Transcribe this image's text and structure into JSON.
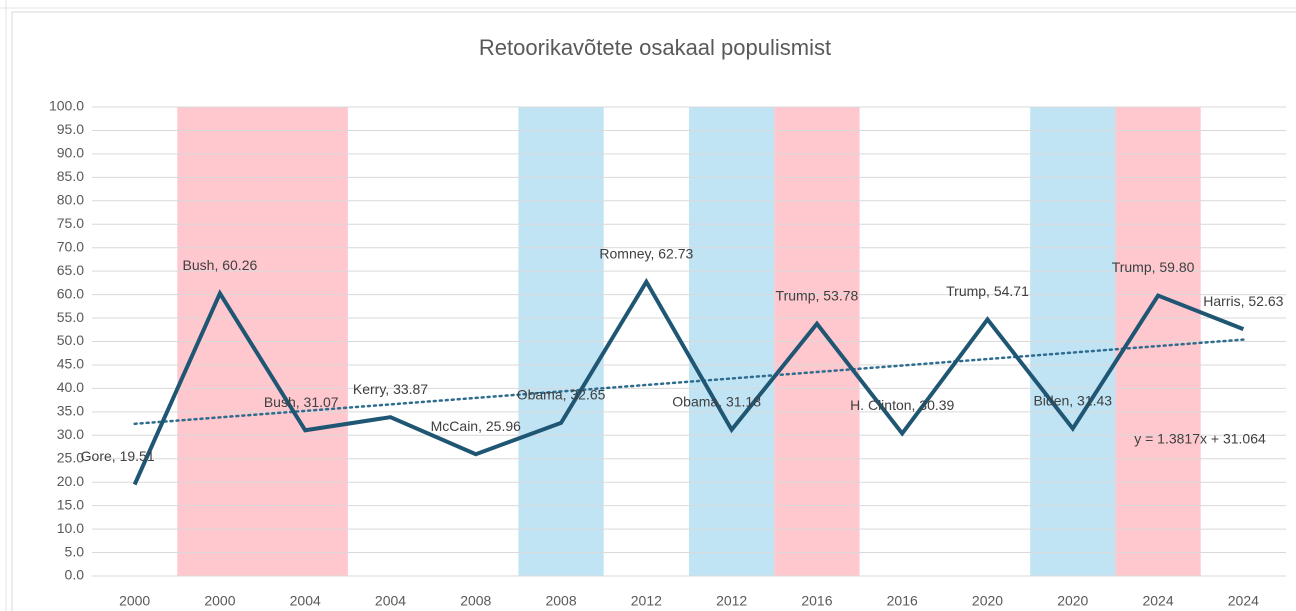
{
  "chart_data": {
    "type": "line",
    "title": "Retoorikavõtete osakaal populismist",
    "categories": [
      "2000",
      "2000",
      "2004",
      "2004",
      "2008",
      "2008",
      "2012",
      "2012",
      "2016",
      "2016",
      "2020",
      "2020",
      "2024",
      "2024"
    ],
    "series": [
      {
        "color": "#1f5673",
        "values": [
          19.51,
          60.26,
          31.07,
          33.87,
          25.96,
          32.65,
          62.73,
          31.18,
          53.78,
          30.39,
          54.71,
          31.43,
          59.8,
          52.63
        ],
        "value_labels": [
          "Gore, 19.51",
          "Bush, 60.26",
          "Bush, 31.07",
          "Kerry, 33.87",
          "McCain, 25.96",
          "Obama, 32.65",
          "Romney, 62.73",
          "Obama, 31.18",
          "Trump, 53.78",
          "H. Clinton, 30.39",
          "Trump, 54.71",
          "Biden, 31.43",
          "Trump, 59.80",
          "Harris, 52.63"
        ]
      }
    ],
    "background_bars": {
      "values": [
        null,
        100,
        100,
        null,
        null,
        100,
        null,
        100,
        100,
        null,
        null,
        100,
        100,
        null
      ],
      "colors": [
        null,
        "#ffc7ce",
        "#ffc7ce",
        null,
        null,
        "#c1e4f5",
        null,
        "#c1e4f5",
        "#ffc7ce",
        null,
        null,
        "#c1e4f5",
        "#ffc7ce",
        null
      ]
    },
    "trendline": {
      "slope": 1.3817,
      "intercept": 31.064,
      "label": "y = 1.3817x + 31.064",
      "color": "#2e6d8e"
    },
    "ylim": [
      0,
      100
    ],
    "yticks": [
      {
        "value": 0,
        "label": "0.0"
      },
      {
        "value": 5,
        "label": "5.0"
      },
      {
        "value": 10,
        "label": "10.0"
      },
      {
        "value": 15,
        "label": "15.0"
      },
      {
        "value": 20,
        "label": "20.0"
      },
      {
        "value": 25,
        "label": "25.0"
      },
      {
        "value": 30,
        "label": "30.0"
      },
      {
        "value": 35,
        "label": "35.0"
      },
      {
        "value": 40,
        "label": "40.0"
      },
      {
        "value": 45,
        "label": "45.0"
      },
      {
        "value": 50,
        "label": "50.0"
      },
      {
        "value": 55,
        "label": "55.0"
      },
      {
        "value": 60,
        "label": "60.0"
      },
      {
        "value": 65,
        "label": "65.0"
      },
      {
        "value": 70,
        "label": "70.0"
      },
      {
        "value": 75,
        "label": "75.0"
      },
      {
        "value": 80,
        "label": "80.0"
      },
      {
        "value": 85,
        "label": "85.0"
      },
      {
        "value": 90,
        "label": "90.0"
      },
      {
        "value": 95,
        "label": "95.0"
      },
      {
        "value": 100,
        "label": "100.0"
      }
    ],
    "grid": true
  }
}
